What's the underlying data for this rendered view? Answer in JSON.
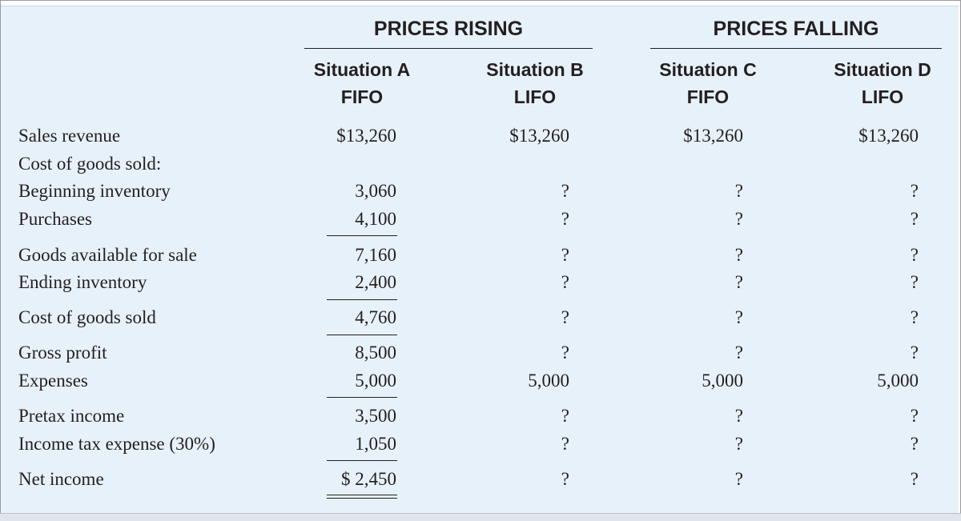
{
  "header": {
    "group_rising": "PRICES RISING",
    "group_falling": "PRICES FALLING",
    "columns": [
      {
        "situation": "Situation A",
        "method": "FIFO"
      },
      {
        "situation": "Situation B",
        "method": "LIFO"
      },
      {
        "situation": "Situation C",
        "method": "FIFO"
      },
      {
        "situation": "Situation D",
        "method": "LIFO"
      }
    ]
  },
  "rows": [
    {
      "label": "Sales revenue",
      "values": [
        "$13,260",
        "$13,260",
        "$13,260",
        "$13,260"
      ]
    },
    {
      "label": "Cost of goods sold:",
      "values": [
        "",
        "",
        "",
        ""
      ]
    },
    {
      "label": "Beginning inventory",
      "values": [
        "3,060",
        "?",
        "?",
        "?"
      ]
    },
    {
      "label": "Purchases",
      "values": [
        "4,100",
        "?",
        "?",
        "?"
      ]
    },
    {
      "label": "Goods available for sale",
      "values": [
        "7,160",
        "?",
        "?",
        "?"
      ]
    },
    {
      "label": "Ending inventory",
      "values": [
        "2,400",
        "?",
        "?",
        "?"
      ]
    },
    {
      "label": "Cost of goods sold",
      "values": [
        "4,760",
        "?",
        "?",
        "?"
      ]
    },
    {
      "label": "Gross profit",
      "values": [
        "8,500",
        "?",
        "?",
        "?"
      ]
    },
    {
      "label": "Expenses",
      "values": [
        "5,000",
        "5,000",
        "5,000",
        "5,000"
      ]
    },
    {
      "label": "Pretax income",
      "values": [
        "3,500",
        "?",
        "?",
        "?"
      ]
    },
    {
      "label": "Income tax expense (30%)",
      "values": [
        "1,050",
        "?",
        "?",
        "?"
      ]
    },
    {
      "label": "Net income",
      "values": [
        "$ 2,450",
        "?",
        "?",
        "?"
      ]
    }
  ]
}
